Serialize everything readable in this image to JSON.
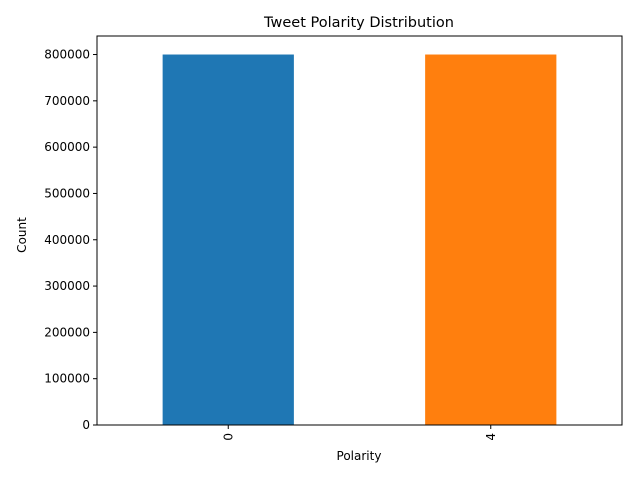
{
  "chart_data": {
    "type": "bar",
    "title": "Tweet Polarity Distribution",
    "xlabel": "Polarity",
    "ylabel": "Count",
    "categories": [
      "0",
      "4"
    ],
    "values": [
      800000,
      800000
    ],
    "ylim": [
      0,
      840000
    ],
    "yticks": [
      0,
      100000,
      200000,
      300000,
      400000,
      500000,
      600000,
      700000,
      800000
    ],
    "ytick_labels": [
      "0",
      "100000",
      "200000",
      "300000",
      "400000",
      "500000",
      "600000",
      "700000",
      "800000"
    ],
    "grid": false,
    "legend": "none",
    "bar_colors": [
      "#1f77b4",
      "#ff7f0e"
    ]
  }
}
